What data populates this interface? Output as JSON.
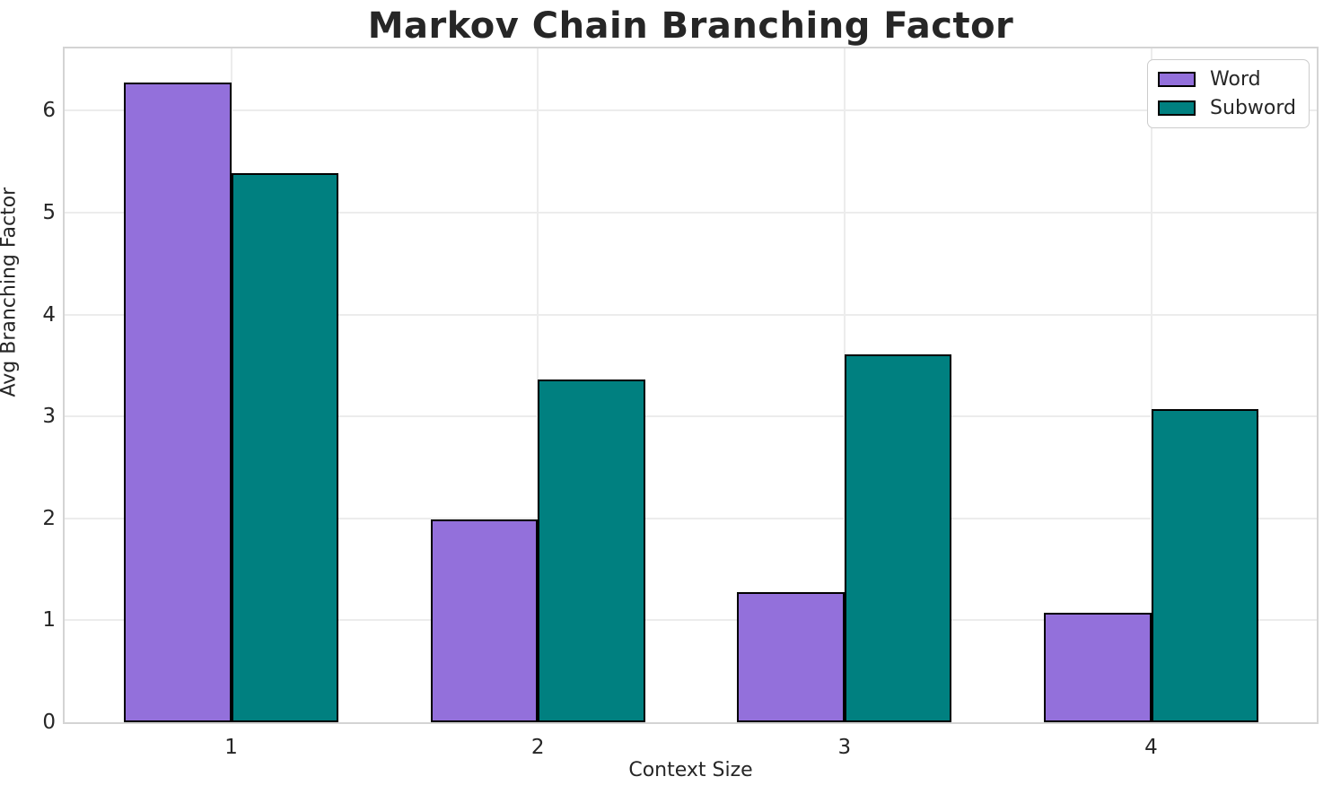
{
  "chart_data": {
    "type": "bar",
    "title": "Markov Chain Branching Factor",
    "xlabel": "Context Size",
    "ylabel": "Avg Branching Factor",
    "categories": [
      "1",
      "2",
      "3",
      "4"
    ],
    "series": [
      {
        "name": "Word",
        "color": "#9370DB",
        "values": [
          6.28,
          1.99,
          1.28,
          1.07
        ]
      },
      {
        "name": "Subword",
        "color": "#008080",
        "values": [
          5.39,
          3.36,
          3.61,
          3.07
        ]
      }
    ],
    "bar_edge_color": "#000000",
    "bar_width_units": 0.35,
    "xlim": [
      -0.543,
      3.54
    ],
    "ylim": [
      0,
      6.61
    ],
    "yticks": [
      0,
      1,
      2,
      3,
      4,
      5,
      6
    ],
    "grid": "on",
    "grid_color": "#ececec",
    "spine_color": "#d4d4d4",
    "text_color": "#262626",
    "legend_position": "upper right"
  }
}
